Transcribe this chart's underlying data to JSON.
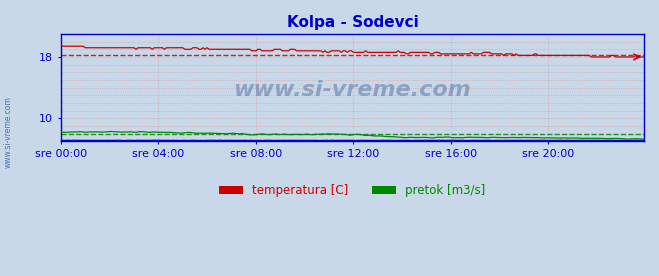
{
  "title": "Kolpa - Sodevci",
  "title_color": "#0000cc",
  "bg_color": "#c8d8e8",
  "plot_bg_color": "#c8d8e8",
  "border_color": "#0000cc",
  "grid_color": "#dd8888",
  "x_labels": [
    "sre 00:00",
    "sre 04:00",
    "sre 08:00",
    "sre 12:00",
    "sre 16:00",
    "sre 20:00"
  ],
  "x_ticks_pos": [
    0,
    48,
    96,
    144,
    192,
    240
  ],
  "n_points": 288,
  "ylim": [
    7.0,
    21.0
  ],
  "yticks": [
    10,
    18
  ],
  "temp_avg": 18.25,
  "flow_avg": 8.0,
  "legend_temp_color": "#cc0000",
  "legend_flow_color": "#008800",
  "height_color": "#0000cc",
  "watermark": "www.si-vreme.com",
  "watermark_color": "#1a4488",
  "watermark_alpha": 0.35,
  "sidebar_text": "www.si-vreme.com",
  "sidebar_color": "#3366aa"
}
